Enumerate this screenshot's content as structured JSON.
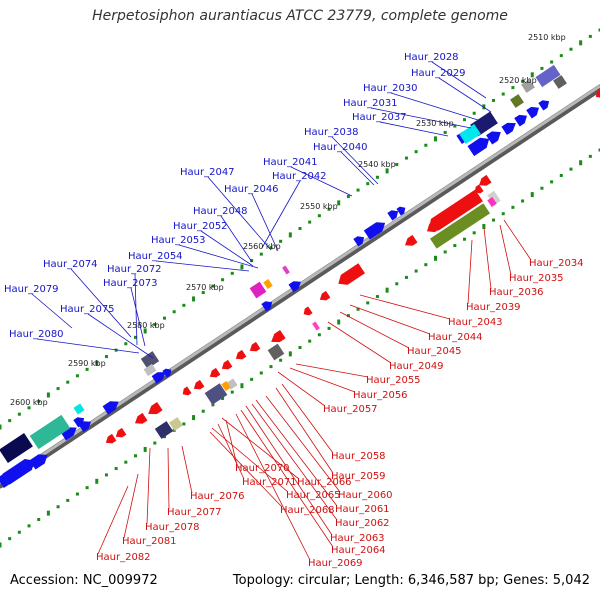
{
  "title": "Herpetosiphon aurantiacus ATCC 23779, complete genome",
  "footer": {
    "accession": "Accession: NC_009972",
    "topology": "Topology: circular; Length: 6,346,587 bp; Genes: 5,042"
  },
  "colors": {
    "forward_label": "#1515c8",
    "reverse_label": "#d01010",
    "backbone": "#808080",
    "tick": "#1a8c1a",
    "forward_gene": "#1010ee",
    "reverse_gene": "#ee1010"
  },
  "kbp_ticks": [
    "2510 kbp",
    "2520 kbp",
    "2530 kbp",
    "2540 kbp",
    "2550 kbp",
    "2560 kbp",
    "2570 kbp",
    "2580 kbp",
    "2590 kbp",
    "2600 kbp"
  ],
  "forward_labels": [
    "Haur_2028",
    "Haur_2029",
    "Haur_2030",
    "Haur_2031",
    "Haur_2037",
    "Haur_2038",
    "Haur_2040",
    "Haur_2041",
    "Haur_2047",
    "Haur_2042",
    "Haur_2046",
    "Haur_2048",
    "Haur_2052",
    "Haur_2053",
    "Haur_2054",
    "Haur_2074",
    "Haur_2072",
    "Haur_2073",
    "Haur_2079",
    "Haur_2075",
    "Haur_2080"
  ],
  "reverse_labels": [
    "Haur_2034",
    "Haur_2035",
    "Haur_2036",
    "Haur_2039",
    "Haur_2043",
    "Haur_2044",
    "Haur_2045",
    "Haur_2049",
    "Haur_2055",
    "Haur_2056",
    "Haur_2057",
    "Haur_2058",
    "Haur_2059",
    "Haur_2060",
    "Haur_2061",
    "Haur_2062",
    "Haur_2063",
    "Haur_2064",
    "Haur_2069",
    "Haur_2070",
    "Haur_2071",
    "Haur_2066",
    "Haur_2065",
    "Haur_2068",
    "Haur_2076",
    "Haur_2077",
    "Haur_2078",
    "Haur_2081",
    "Haur_2082"
  ]
}
